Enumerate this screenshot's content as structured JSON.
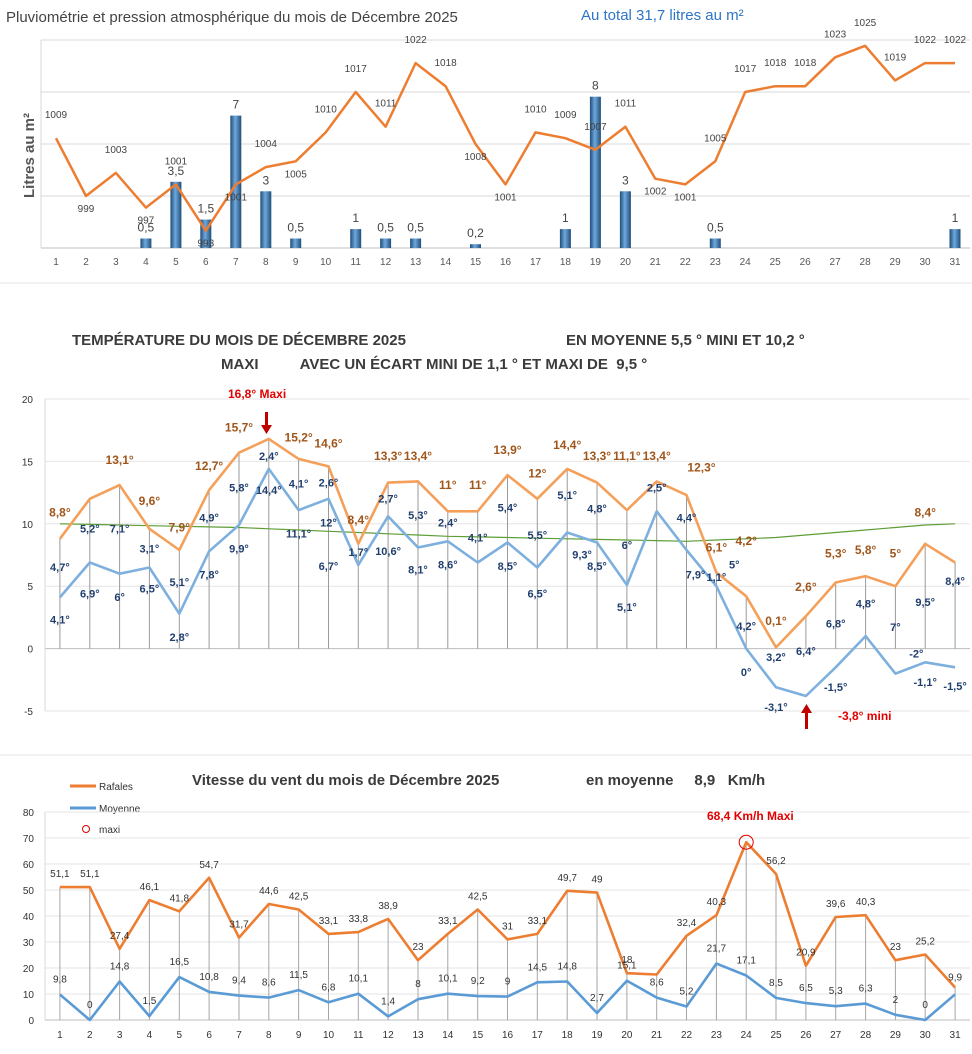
{
  "page": {
    "sep": "-"
  },
  "chart_data": [
    {
      "type": "bar+line",
      "id": "pluvio",
      "title": "Pluviométrie et pression atmosphérique du mois de Décembre  2025",
      "subtitle": "Au total  31,7  litres au m²",
      "ylabel": "Litres  au  m²",
      "categories": [
        "1",
        "2",
        "3",
        "4",
        "5",
        "6",
        "7",
        "8",
        "9",
        "10",
        "11",
        "12",
        "13",
        "14",
        "15",
        "16",
        "17",
        "18",
        "19",
        "20",
        "21",
        "22",
        "23",
        "24",
        "25",
        "26",
        "27",
        "28",
        "29",
        "30",
        "31"
      ],
      "rain": [
        null,
        null,
        null,
        0.5,
        3.5,
        1.5,
        7,
        3,
        0.5,
        null,
        1,
        0.5,
        0.5,
        null,
        0.2,
        null,
        null,
        1,
        8,
        3,
        null,
        null,
        0.5,
        null,
        null,
        null,
        null,
        null,
        null,
        null,
        1
      ],
      "rain_labels": [
        "",
        "",
        "",
        "0,5",
        "3,5",
        "1,5",
        "7",
        "3",
        "0,5",
        "",
        "1",
        "0,5",
        "0,5",
        "",
        "0,2",
        "",
        "",
        "1",
        "8",
        "3",
        "",
        "",
        "0,5",
        "",
        "",
        "",
        "",
        "",
        "",
        "",
        "1"
      ],
      "pressure": [
        1009,
        999,
        1003,
        997,
        1001,
        993,
        1001,
        1004,
        1005,
        1010,
        1017,
        1011,
        1022,
        1018,
        1008,
        1001,
        1010,
        1009,
        1007,
        1011,
        1002,
        1001,
        1005,
        1017,
        1018,
        1018,
        1023,
        1025,
        1019,
        1022,
        1022
      ],
      "pressure_range": [
        990,
        1026
      ],
      "rain_range": [
        0,
        11
      ],
      "colors": {
        "pressure": "#ed7d31",
        "rain": "#2e6fa7"
      }
    },
    {
      "type": "line",
      "id": "temp",
      "title_line1": "TEMPÉRATURE DU MOIS DE DÉCEMBRE 2025",
      "title_line1b": "EN MOYENNE 5,5 °  MINI  ET  10,2 °",
      "title_line2": "MAXI          AVEC UN ÉCART MINI DE 1,1 ° ET MAXI DE  9,5 °",
      "yticks": [
        "20",
        "15",
        "10",
        "5",
        "0",
        "-5"
      ],
      "ylim": [
        -5,
        20
      ],
      "series": [
        {
          "name": "maxi",
          "values": [
            8.8,
            12.0,
            13.1,
            9.6,
            7.9,
            12.7,
            15.7,
            16.8,
            15.2,
            14.6,
            8.4,
            13.3,
            13.4,
            11,
            11,
            13.9,
            12,
            14.4,
            13.3,
            11.1,
            13.4,
            12.3,
            6.1,
            4.2,
            0.1,
            2.6,
            5.3,
            5.8,
            5,
            8.4,
            6.9
          ]
        },
        {
          "name": "mini",
          "values": [
            4.1,
            6.9,
            6,
            6.5,
            2.8,
            7.8,
            9.9,
            14.4,
            11.1,
            12,
            6.7,
            10.6,
            8.1,
            8.6,
            6.9,
            8.5,
            6.5,
            9.3,
            8.5,
            5.1,
            11.0,
            7.9,
            5.0,
            0,
            -3.1,
            -3.8,
            -1.5,
            1.0,
            -2.0,
            -1.1,
            -1.5
          ]
        },
        {
          "name": "normale",
          "values": [
            10,
            9.95,
            9.9,
            9.85,
            9.8,
            9.75,
            9.7,
            9.6,
            9.5,
            9.4,
            9.3,
            9.2,
            9.1,
            9.0,
            8.95,
            8.9,
            8.85,
            8.8,
            8.75,
            8.7,
            8.65,
            8.6,
            8.7,
            8.8,
            8.9,
            9.1,
            9.3,
            9.5,
            9.7,
            9.9,
            10.0
          ]
        }
      ],
      "labels_orange": [
        {
          "t": "8,8°",
          "d": 1,
          "v": 10.6
        },
        {
          "t": "13,1°",
          "d": 3,
          "v": 14.8
        },
        {
          "t": "9,6°",
          "d": 4,
          "v": 11.5
        },
        {
          "t": "7,9°",
          "d": 5,
          "v": 9.4
        },
        {
          "t": "12,7°",
          "d": 6,
          "v": 14.3
        },
        {
          "t": "15,7°",
          "d": 7,
          "v": 17.4
        },
        {
          "t": "15,2°",
          "d": 9,
          "v": 16.6
        },
        {
          "t": "14,6°",
          "d": 10,
          "v": 16.1
        },
        {
          "t": "8,4°",
          "d": 11,
          "v": 10.0
        },
        {
          "t": "13,3°",
          "d": 12,
          "v": 15.1
        },
        {
          "t": "13,4°",
          "d": 13,
          "v": 15.1
        },
        {
          "t": "11°",
          "d": 14,
          "v": 12.8
        },
        {
          "t": "11°",
          "d": 15,
          "v": 12.8
        },
        {
          "t": "13,9°",
          "d": 16,
          "v": 15.6
        },
        {
          "t": "12°",
          "d": 17,
          "v": 13.7
        },
        {
          "t": "14,4°",
          "d": 18,
          "v": 16.0
        },
        {
          "t": "13,3°",
          "d": 19,
          "v": 15.1
        },
        {
          "t": "11,1°",
          "d": 20,
          "v": 15.1
        },
        {
          "t": "13,4°",
          "d": 21,
          "v": 15.1
        },
        {
          "t": "12,3°",
          "d": 22.5,
          "v": 14.2
        },
        {
          "t": "6,1°",
          "d": 23,
          "v": 7.8
        },
        {
          "t": "4,2°",
          "d": 24,
          "v": 8.3
        },
        {
          "t": "0,1°",
          "d": 25,
          "v": 1.9
        },
        {
          "t": "2,6°",
          "d": 26,
          "v": 4.6
        },
        {
          "t": "5,3°",
          "d": 27,
          "v": 7.3
        },
        {
          "t": "5,8°",
          "d": 28,
          "v": 7.6
        },
        {
          "t": "5°",
          "d": 29,
          "v": 7.3
        },
        {
          "t": "8,4°",
          "d": 30,
          "v": 10.6
        }
      ],
      "labels_blue": [
        {
          "t": "4,7°",
          "d": 1,
          "v": 6.2
        },
        {
          "t": "4,1°",
          "d": 1,
          "v": 2.0
        },
        {
          "t": "5,2°",
          "d": 2,
          "v": 9.3
        },
        {
          "t": "6,9°",
          "d": 2,
          "v": 4.1
        },
        {
          "t": "7,1°",
          "d": 3,
          "v": 9.3
        },
        {
          "t": "6°",
          "d": 3,
          "v": 3.8
        },
        {
          "t": "3,1°",
          "d": 4,
          "v": 7.7
        },
        {
          "t": "6,5°",
          "d": 4,
          "v": 4.5
        },
        {
          "t": "5,1°",
          "d": 5,
          "v": 5.0
        },
        {
          "t": "2,8°",
          "d": 5,
          "v": 0.6
        },
        {
          "t": "4,9°",
          "d": 6,
          "v": 10.2
        },
        {
          "t": "7,8°",
          "d": 6,
          "v": 5.6
        },
        {
          "t": "5,8°",
          "d": 7,
          "v": 12.6
        },
        {
          "t": "9,9°",
          "d": 7,
          "v": 7.7
        },
        {
          "t": "2,4°",
          "d": 8,
          "v": 15.1
        },
        {
          "t": "14,4°",
          "d": 8,
          "v": 12.4
        },
        {
          "t": "4,1°",
          "d": 9,
          "v": 12.9
        },
        {
          "t": "11,1°",
          "d": 9,
          "v": 8.9
        },
        {
          "t": "2,6°",
          "d": 10,
          "v": 13.0
        },
        {
          "t": "12°",
          "d": 10,
          "v": 9.8
        },
        {
          "t": "6,7°",
          "d": 10,
          "v": 6.3
        },
        {
          "t": "1,7°",
          "d": 11,
          "v": 7.4
        },
        {
          "t": "2,7°",
          "d": 12,
          "v": 11.7
        },
        {
          "t": "10,6°",
          "d": 12,
          "v": 7.5
        },
        {
          "t": "5,3°",
          "d": 13,
          "v": 10.4
        },
        {
          "t": "8,1°",
          "d": 13,
          "v": 6.0
        },
        {
          "t": "2,4°",
          "d": 14,
          "v": 9.8
        },
        {
          "t": "8,6°",
          "d": 14,
          "v": 6.4
        },
        {
          "t": "4,1°",
          "d": 15,
          "v": 8.6
        },
        {
          "t": "5,4°",
          "d": 16,
          "v": 11.0
        },
        {
          "t": "8,5°",
          "d": 16,
          "v": 6.3
        },
        {
          "t": "5,5°",
          "d": 17,
          "v": 8.8
        },
        {
          "t": "6,5°",
          "d": 17,
          "v": 4.1
        },
        {
          "t": "5,1°",
          "d": 18,
          "v": 12.0
        },
        {
          "t": "9,3°",
          "d": 18.5,
          "v": 7.2
        },
        {
          "t": "4,8°",
          "d": 19,
          "v": 10.9
        },
        {
          "t": "8,5°",
          "d": 19,
          "v": 6.3
        },
        {
          "t": "6°",
          "d": 20,
          "v": 8.0
        },
        {
          "t": "5,1°",
          "d": 20,
          "v": 3.0
        },
        {
          "t": "2,5°",
          "d": 21,
          "v": 12.6
        },
        {
          "t": "4,4°",
          "d": 22,
          "v": 10.2
        },
        {
          "t": "7,9°",
          "d": 22.3,
          "v": 5.6
        },
        {
          "t": "1,1°",
          "d": 23,
          "v": 5.4
        },
        {
          "t": "5°",
          "d": 23.6,
          "v": 6.4
        },
        {
          "t": "4,2°",
          "d": 24,
          "v": 1.5
        },
        {
          "t": "0°",
          "d": 24,
          "v": -2.2
        },
        {
          "t": "3,2°",
          "d": 25,
          "v": -1.0
        },
        {
          "t": "-3,1°",
          "d": 25,
          "v": -5.0
        },
        {
          "t": "6,4°",
          "d": 26,
          "v": -0.5
        },
        {
          "t": "6,8°",
          "d": 27,
          "v": 1.7
        },
        {
          "t": "-1,5°",
          "d": 27,
          "v": -3.4
        },
        {
          "t": "4,8°",
          "d": 28,
          "v": 3.3
        },
        {
          "t": "7°",
          "d": 29,
          "v": 1.4
        },
        {
          "t": "-2°",
          "d": 29.7,
          "v": -0.7
        },
        {
          "t": "9,5°",
          "d": 30,
          "v": 3.4
        },
        {
          "t": "-1,1°",
          "d": 30,
          "v": -3.0
        },
        {
          "t": "8,4°",
          "d": 31,
          "v": 5.1
        },
        {
          "t": "-1,5°",
          "d": 31,
          "v": -3.3
        }
      ],
      "maxi_label": "16,8°  Maxi",
      "mini_label": "-3,8°  mini",
      "colors": {
        "maxi": "#f4a05a",
        "mini": "#7eb0de",
        "normale": "#5e9e36",
        "label_orange": "#a0561b",
        "label_blue": "#1f3e6e",
        "red": "#e20000"
      }
    },
    {
      "type": "line",
      "id": "wind",
      "title": "Vitesse du vent du mois de Décembre  2025",
      "subtitle": "en moyenne     8,9   Km/h",
      "categories": [
        "1",
        "2",
        "3",
        "4",
        "5",
        "6",
        "7",
        "8",
        "9",
        "10",
        "11",
        "12",
        "13",
        "14",
        "15",
        "16",
        "17",
        "18",
        "19",
        "20",
        "21",
        "22",
        "23",
        "24",
        "25",
        "26",
        "27",
        "28",
        "29",
        "30",
        "31"
      ],
      "yticks": [
        "80",
        "70",
        "60",
        "50",
        "40",
        "30",
        "20",
        "10",
        "0"
      ],
      "ylim": [
        0,
        80
      ],
      "legend": [
        "Rafales",
        "Moyenne",
        "maxi"
      ],
      "series": [
        {
          "name": "Rafales",
          "values": [
            51.1,
            51.1,
            27.4,
            46.1,
            41.8,
            54.7,
            31.7,
            44.6,
            42.5,
            33.1,
            33.8,
            38.9,
            23,
            33.1,
            42.5,
            31,
            33.1,
            49.7,
            49,
            18,
            17.5,
            32.4,
            40.3,
            68.4,
            56.2,
            20.9,
            39.6,
            40.3,
            23,
            25.2,
            12.5
          ],
          "labels": [
            "51,1",
            "51,1",
            "27,4",
            "46,1",
            "41,8",
            "54,7",
            "31,7",
            "44,6",
            "42,5",
            "33,1",
            "33,8",
            "38,9",
            "23",
            "33,1",
            "42,5",
            "31",
            "33,1",
            "49,7",
            "49",
            "18",
            "",
            "32,4",
            "40,3",
            "",
            "56,2",
            "20,9",
            "39,6",
            "40,3",
            "23",
            "25,2",
            ""
          ]
        },
        {
          "name": "Moyenne",
          "values": [
            9.8,
            0,
            14.8,
            1.5,
            16.5,
            10.8,
            9.4,
            8.6,
            11.5,
            6.8,
            10.1,
            1.4,
            8,
            10.1,
            9.2,
            9,
            14.5,
            14.8,
            2.7,
            15.1,
            8.6,
            5.2,
            21.7,
            17.1,
            8.5,
            6.5,
            5.3,
            6.3,
            2,
            0,
            9.9
          ],
          "labels": [
            "9,8",
            "0",
            "14,8",
            "1,5",
            "16,5",
            "10,8",
            "9,4",
            "8,6",
            "11,5",
            "6,8",
            "10,1",
            "1,4",
            "8",
            "10,1",
            "9,2",
            "9",
            "14,5",
            "14,8",
            "2,7",
            "15,1",
            "8,6",
            "5,2",
            "21,7",
            "17,1",
            "8,5",
            "6,5",
            "5,3",
            "6,3",
            "2",
            "0",
            "9,9"
          ]
        }
      ],
      "maxi_label": "68,4 Km/h Maxi",
      "colors": {
        "rafales": "#ed7d31",
        "moyenne": "#5b9bd5",
        "maxi": "#e20000"
      }
    }
  ]
}
